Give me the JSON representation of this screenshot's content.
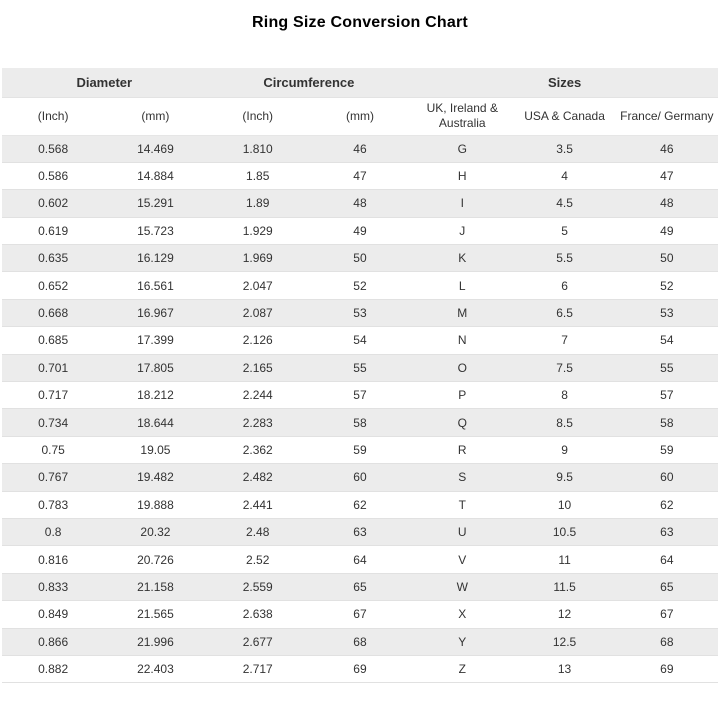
{
  "title": "Ring Size Conversion Chart",
  "colors": {
    "stripe_gray": "#ececec",
    "row_border": "#e1e1e1",
    "text": "#333333",
    "title_text": "#000000",
    "background": "#ffffff"
  },
  "chart_data": {
    "type": "table",
    "title": "Ring Size Conversion Chart",
    "group_headers": [
      {
        "label": "Diameter",
        "colspan": 2
      },
      {
        "label": "Circumference",
        "colspan": 2
      },
      {
        "label": "Sizes",
        "colspan": 3
      }
    ],
    "columns": [
      "(Inch)",
      "(mm)",
      "(Inch)",
      "(mm)",
      "UK, Ireland & Australia",
      "USA & Canada",
      "France/ Germany"
    ],
    "rows": [
      [
        "0.568",
        "14.469",
        "1.810",
        "46",
        "G",
        "3.5",
        "46"
      ],
      [
        "0.586",
        "14.884",
        "1.85",
        "47",
        "H",
        "4",
        "47"
      ],
      [
        "0.602",
        "15.291",
        "1.89",
        "48",
        "I",
        "4.5",
        "48"
      ],
      [
        "0.619",
        "15.723",
        "1.929",
        "49",
        "J",
        "5",
        "49"
      ],
      [
        "0.635",
        "16.129",
        "1.969",
        "50",
        "K",
        "5.5",
        "50"
      ],
      [
        "0.652",
        "16.561",
        "2.047",
        "52",
        "L",
        "6",
        "52"
      ],
      [
        "0.668",
        "16.967",
        "2.087",
        "53",
        "M",
        "6.5",
        "53"
      ],
      [
        "0.685",
        "17.399",
        "2.126",
        "54",
        "N",
        "7",
        "54"
      ],
      [
        "0.701",
        "17.805",
        "2.165",
        "55",
        "O",
        "7.5",
        "55"
      ],
      [
        "0.717",
        "18.212",
        "2.244",
        "57",
        "P",
        "8",
        "57"
      ],
      [
        "0.734",
        "18.644",
        "2.283",
        "58",
        "Q",
        "8.5",
        "58"
      ],
      [
        "0.75",
        "19.05",
        "2.362",
        "59",
        "R",
        "9",
        "59"
      ],
      [
        "0.767",
        "19.482",
        "2.482",
        "60",
        "S",
        "9.5",
        "60"
      ],
      [
        "0.783",
        "19.888",
        "2.441",
        "62",
        "T",
        "10",
        "62"
      ],
      [
        "0.8",
        "20.32",
        "2.48",
        "63",
        "U",
        "10.5",
        "63"
      ],
      [
        "0.816",
        "20.726",
        "2.52",
        "64",
        "V",
        "11",
        "64"
      ],
      [
        "0.833",
        "21.158",
        "2.559",
        "65",
        "W",
        "11.5",
        "65"
      ],
      [
        "0.849",
        "21.565",
        "2.638",
        "67",
        "X",
        "12",
        "67"
      ],
      [
        "0.866",
        "21.996",
        "2.677",
        "68",
        "Y",
        "12.5",
        "68"
      ],
      [
        "0.882",
        "22.403",
        "2.717",
        "69",
        "Z",
        "13",
        "69"
      ]
    ]
  }
}
